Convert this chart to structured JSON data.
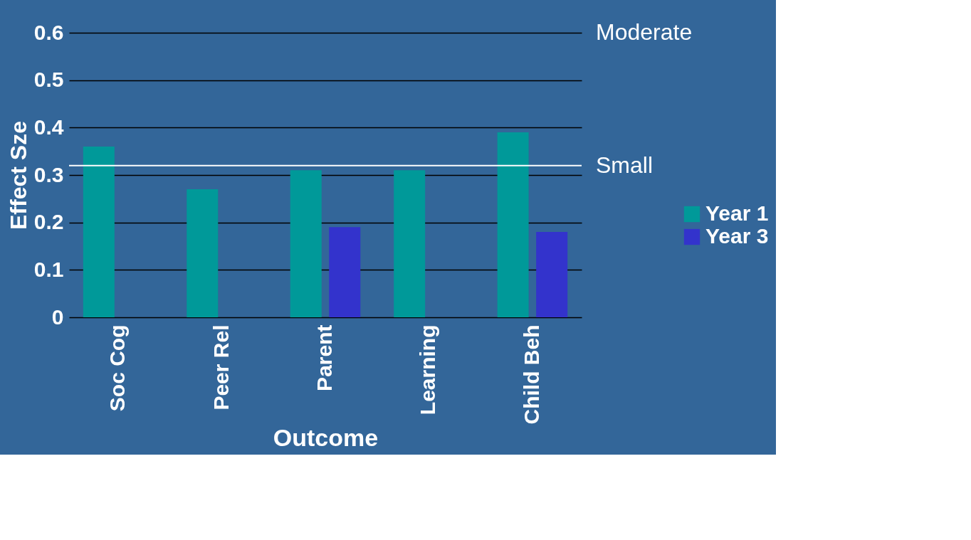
{
  "chart_data": {
    "type": "bar",
    "xlabel": "Outcome",
    "ylabel": "Effect Sze",
    "categories": [
      "Soc Cog",
      "Peer Rel",
      "Parent",
      "Learning",
      "Child Beh"
    ],
    "series": [
      {
        "name": "Year 1",
        "color": "#009999",
        "values": [
          0.36,
          0.27,
          0.31,
          0.31,
          0.39
        ]
      },
      {
        "name": "Year 3",
        "color": "#3333cc",
        "values": [
          0,
          0,
          0.19,
          0,
          0.18
        ]
      }
    ],
    "ylim": [
      0,
      0.6
    ],
    "yticks": [
      0,
      0.1,
      0.2,
      0.3,
      0.4,
      0.5,
      0.6
    ],
    "grid": "y",
    "legend": "right",
    "ref_lines": [
      {
        "axis": "y",
        "value": 0.32,
        "label": "Small",
        "color": "#ffffff"
      }
    ],
    "annotations": [
      "Moderate"
    ]
  }
}
